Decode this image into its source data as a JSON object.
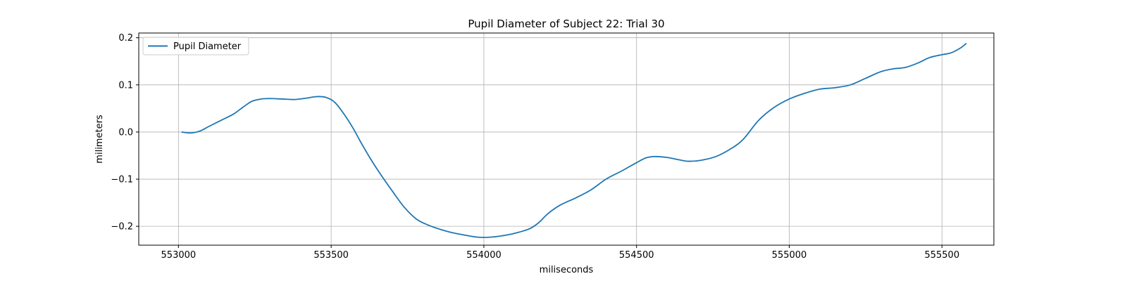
{
  "chart_data": {
    "type": "line",
    "title": "Pupil Diameter of Subject 22: Trial 30",
    "xlabel": "miliseconds",
    "ylabel": "milimeters",
    "xlim": [
      552870,
      555670
    ],
    "ylim": [
      -0.24,
      0.21
    ],
    "xticks": [
      553000,
      553500,
      554000,
      554500,
      555000,
      555500
    ],
    "yticks": [
      -0.2,
      -0.1,
      0.0,
      0.1,
      0.2
    ],
    "xtick_labels": [
      "553000",
      "553500",
      "554000",
      "554500",
      "555000",
      "555500"
    ],
    "ytick_labels": [
      "−0.2",
      "−0.1",
      "0.0",
      "0.1",
      "0.2"
    ],
    "grid": true,
    "legend_position": "top-left",
    "line_color": "#1f77b4",
    "series": [
      {
        "name": "Pupil Diameter",
        "x": [
          553010,
          553040,
          553070,
          553100,
          553140,
          553180,
          553210,
          553240,
          553270,
          553300,
          553340,
          553380,
          553420,
          553450,
          553480,
          553510,
          553540,
          553570,
          553600,
          553630,
          553660,
          553700,
          553740,
          553780,
          553820,
          553860,
          553900,
          553940,
          553980,
          554020,
          554060,
          554100,
          554150,
          554180,
          554210,
          554250,
          554300,
          554350,
          554400,
          554450,
          554500,
          554530,
          554560,
          554600,
          554640,
          554670,
          554710,
          554760,
          554810,
          554850,
          554900,
          554950,
          555000,
          555050,
          555100,
          555150,
          555200,
          555250,
          555300,
          555340,
          555380,
          555420,
          555460,
          555500,
          555530,
          555560,
          555580
        ],
        "y": [
          0.0,
          -0.002,
          0.002,
          0.012,
          0.025,
          0.038,
          0.052,
          0.065,
          0.07,
          0.071,
          0.07,
          0.069,
          0.072,
          0.075,
          0.074,
          0.064,
          0.04,
          0.01,
          -0.025,
          -0.058,
          -0.088,
          -0.125,
          -0.16,
          -0.185,
          -0.198,
          -0.207,
          -0.214,
          -0.219,
          -0.223,
          -0.223,
          -0.22,
          -0.215,
          -0.205,
          -0.192,
          -0.173,
          -0.155,
          -0.14,
          -0.123,
          -0.1,
          -0.083,
          -0.065,
          -0.055,
          -0.052,
          -0.054,
          -0.059,
          -0.062,
          -0.06,
          -0.052,
          -0.035,
          -0.015,
          0.025,
          0.052,
          0.07,
          0.082,
          0.091,
          0.094,
          0.1,
          0.114,
          0.128,
          0.134,
          0.137,
          0.146,
          0.158,
          0.164,
          0.168,
          0.178,
          0.188
        ]
      }
    ]
  }
}
